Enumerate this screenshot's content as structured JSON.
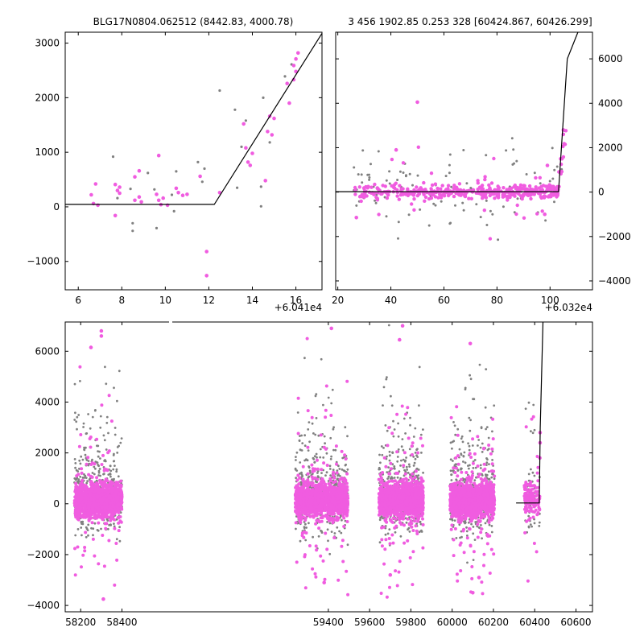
{
  "colors": {
    "background": "#ffffff",
    "pink": "#f05ce0",
    "gray": "#808080",
    "model_line": "#000000",
    "axes": "#000000"
  },
  "chart_data": [
    {
      "type": "scatter",
      "title": "BLG17N0804.062512 (8442.83, 4000.78)",
      "x_offset_label": "+6.041e4",
      "xlim": [
        5.4,
        17.2
      ],
      "ylim": [
        -1520,
        3200
      ],
      "xticks": [
        6,
        8,
        10,
        12,
        14,
        16
      ],
      "yticks": [
        -1000,
        0,
        1000,
        2000,
        3000
      ],
      "model_line": [
        [
          5.4,
          45
        ],
        [
          12.25,
          45
        ],
        [
          17.2,
          3180
        ]
      ],
      "series": [
        {
          "color": "pink",
          "points": [
            [
              6.6,
              220
            ],
            [
              6.8,
              420
            ],
            [
              6.7,
              60
            ],
            [
              6.9,
              30
            ],
            [
              7.7,
              410
            ],
            [
              7.8,
              300
            ],
            [
              7.9,
              360
            ],
            [
              7.9,
              250
            ],
            [
              7.7,
              -160
            ],
            [
              8.6,
              550
            ],
            [
              8.8,
              660
            ],
            [
              8.6,
              120
            ],
            [
              8.8,
              180
            ],
            [
              8.9,
              90
            ],
            [
              9.6,
              230
            ],
            [
              9.7,
              940
            ],
            [
              9.8,
              40
            ],
            [
              9.9,
              160
            ],
            [
              9.7,
              120
            ],
            [
              10.1,
              30
            ],
            [
              10.5,
              340
            ],
            [
              10.6,
              260
            ],
            [
              10.8,
              210
            ],
            [
              11.0,
              230
            ],
            [
              11.6,
              560
            ],
            [
              11.9,
              -820
            ],
            [
              11.9,
              -1260
            ],
            [
              12.5,
              260
            ],
            [
              13.6,
              1520
            ],
            [
              13.7,
              1080
            ],
            [
              13.8,
              820
            ],
            [
              13.9,
              760
            ],
            [
              14.0,
              980
            ],
            [
              14.6,
              480
            ],
            [
              14.7,
              1380
            ],
            [
              14.8,
              1660
            ],
            [
              14.9,
              1320
            ],
            [
              15.0,
              1620
            ],
            [
              15.6,
              2260
            ],
            [
              15.7,
              1900
            ],
            [
              15.9,
              2330
            ],
            [
              15.9,
              2590
            ],
            [
              16.0,
              2480
            ],
            [
              16.1,
              2820
            ],
            [
              16.0,
              2710
            ]
          ]
        },
        {
          "color": "gray",
          "points": [
            [
              7.6,
              920
            ],
            [
              7.8,
              160
            ],
            [
              8.4,
              330
            ],
            [
              8.5,
              -300
            ],
            [
              8.5,
              -440
            ],
            [
              9.2,
              620
            ],
            [
              9.5,
              320
            ],
            [
              9.6,
              -390
            ],
            [
              10.3,
              220
            ],
            [
              10.4,
              -80
            ],
            [
              10.5,
              650
            ],
            [
              11.5,
              820
            ],
            [
              11.7,
              460
            ],
            [
              11.8,
              700
            ],
            [
              12.5,
              2130
            ],
            [
              13.2,
              1780
            ],
            [
              13.3,
              350
            ],
            [
              13.5,
              1100
            ],
            [
              13.7,
              1580
            ],
            [
              14.4,
              370
            ],
            [
              14.5,
              2000
            ],
            [
              14.4,
              10
            ],
            [
              14.8,
              1180
            ],
            [
              15.5,
              2390
            ],
            [
              15.8,
              2610
            ]
          ]
        }
      ]
    },
    {
      "type": "scatter",
      "title": "3 456 1902.85 0.253 328 [60424.867, 60426.299]",
      "x_offset_label": "+6.032e4",
      "xlim": [
        19.2,
        116.0
      ],
      "ylim": [
        -4400,
        7200
      ],
      "xticks": [
        20,
        40,
        60,
        80,
        100
      ],
      "yticks": [
        -4000,
        -2000,
        0,
        2000,
        4000,
        6000
      ],
      "model_line": [
        [
          19.2,
          20
        ],
        [
          103.2,
          20
        ],
        [
          106.5,
          6000
        ],
        [
          110.5,
          7200
        ]
      ]
    },
    {
      "type": "scatter",
      "xlim": [
        58125,
        60680
      ],
      "ylim": [
        -4250,
        7150
      ],
      "xticks": [
        58200,
        58400,
        59400,
        59600,
        59800,
        60000,
        60200,
        60400,
        60600
      ],
      "yticks": [
        -4000,
        -2000,
        0,
        2000,
        4000,
        6000
      ],
      "model_line": [
        [
          60310,
          30
        ],
        [
          60422,
          30
        ],
        [
          60427,
          3000
        ],
        [
          60440,
          7150
        ]
      ],
      "broken_axis_gap": [
        58425,
        59230
      ]
    }
  ]
}
